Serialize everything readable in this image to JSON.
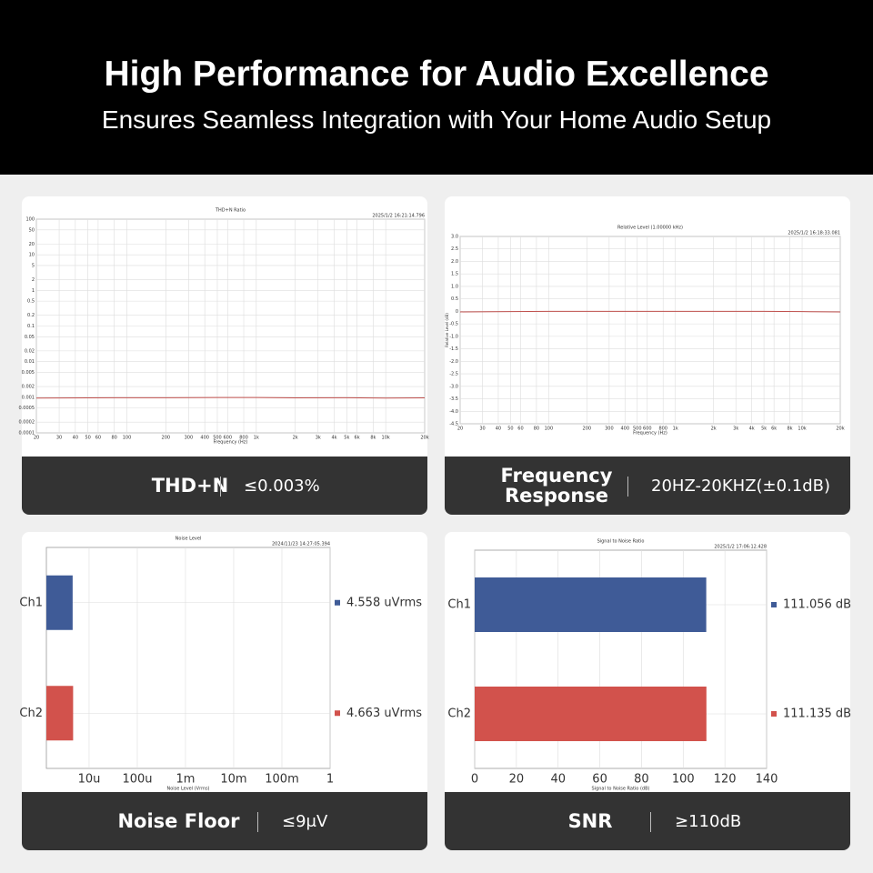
{
  "header": {
    "title": "High Performance for Audio Excellence",
    "subtitle": "Ensures Seamless Integration with Your Home Audio Setup"
  },
  "chart_data": [
    {
      "type": "line",
      "title": "THD+N Ratio",
      "timestamp": "2025/1/2 16:21:14.796",
      "x_label": "Frequency (Hz)",
      "x_log": true,
      "y_log": true,
      "xlim": [
        20,
        20000
      ],
      "ylim": [
        0.0001,
        100
      ],
      "grid": true,
      "xticks": [
        20,
        30,
        40,
        50,
        60,
        80,
        100,
        200,
        300,
        400,
        500,
        600,
        800,
        {
          "value": 1000,
          "label": "1k"
        },
        {
          "value": 2000,
          "label": "2k"
        },
        {
          "value": 3000,
          "label": "3k"
        },
        {
          "value": 4000,
          "label": "4k"
        },
        {
          "value": 5000,
          "label": "5k"
        },
        {
          "value": 6000,
          "label": "6k"
        },
        {
          "value": 8000,
          "label": "8k"
        },
        {
          "value": 10000,
          "label": "10k"
        },
        {
          "value": 20000,
          "label": "20k"
        }
      ],
      "yticks": [
        100,
        50,
        20,
        10,
        5,
        2,
        1,
        0.5,
        0.2,
        0.1,
        0.05,
        0.02,
        0.01,
        0.005,
        0.002,
        0.001,
        0.0005,
        0.0002,
        0.0001
      ],
      "x": [
        20,
        50,
        100,
        200,
        500,
        1000,
        2000,
        5000,
        10000,
        20000
      ],
      "series": [
        {
          "color": "#c0504d",
          "values": [
            0.00095,
            0.00096,
            0.00097,
            0.00097,
            0.00098,
            0.00098,
            0.00096,
            0.00097,
            0.00095,
            0.00096
          ]
        }
      ],
      "caption": {
        "label": "THD+N",
        "value": "≤0.003%"
      }
    },
    {
      "type": "line",
      "title": "Relative Level (1.00000 kHz)",
      "timestamp": "2025/1/2 16:18:33.081",
      "x_label": "Frequency (Hz)",
      "y_label": "Relative Level (dB)",
      "x_log": true,
      "xlim": [
        20,
        20000
      ],
      "ylim": [
        -4.5,
        3.0
      ],
      "grid": true,
      "xticks": [
        20,
        30,
        40,
        50,
        60,
        80,
        100,
        200,
        300,
        400,
        500,
        600,
        800,
        {
          "value": 1000,
          "label": "1k"
        },
        {
          "value": 2000,
          "label": "2k"
        },
        {
          "value": 3000,
          "label": "3k"
        },
        {
          "value": 4000,
          "label": "4k"
        },
        {
          "value": 5000,
          "label": "5k"
        },
        {
          "value": 6000,
          "label": "6k"
        },
        {
          "value": 8000,
          "label": "8k"
        },
        {
          "value": 10000,
          "label": "10k"
        },
        {
          "value": 20000,
          "label": "20k"
        }
      ],
      "yticks": [
        {
          "value": 3,
          "label": "3.0"
        },
        2.5,
        {
          "value": 2,
          "label": "2.0"
        },
        1.5,
        {
          "value": 1,
          "label": "1.0"
        },
        0.5,
        0,
        -0.5,
        {
          "value": -1,
          "label": "-1.0"
        },
        -1.5,
        {
          "value": -2,
          "label": "-2.0"
        },
        -2.5,
        {
          "value": -3,
          "label": "-3.0"
        },
        -3.5,
        {
          "value": -4,
          "label": "-4.0"
        },
        -4.5
      ],
      "x": [
        20,
        50,
        100,
        200,
        500,
        1000,
        2000,
        5000,
        10000,
        20000
      ],
      "series": [
        {
          "color": "#c0504d",
          "values": [
            -0.02,
            -0.01,
            0,
            0,
            0,
            0,
            0,
            0,
            -0.01,
            -0.02
          ]
        }
      ],
      "caption": {
        "label": "Frequency Response",
        "value": "20HZ-20KHZ(±0.1dB)"
      }
    },
    {
      "type": "hbar",
      "title": "Noise Level",
      "timestamp": "2024/11/23 14:27:05.394",
      "x_label": "Noise Level (Vrms)",
      "x_log": true,
      "xlim": [
        1.3e-06,
        1
      ],
      "grid": true,
      "xticks": [
        {
          "value": 1e-05,
          "label": "10u"
        },
        {
          "value": 0.0001,
          "label": "100u"
        },
        {
          "value": 0.001,
          "label": "1m"
        },
        {
          "value": 0.01,
          "label": "10m"
        },
        {
          "value": 0.1,
          "label": "100m"
        },
        1
      ],
      "categories": [
        "Ch1",
        "Ch2"
      ],
      "values": [
        4.558e-06,
        4.663e-06
      ],
      "value_labels": [
        "4.558  uVrms",
        "4.663  uVrms"
      ],
      "colors": [
        "#3f5b97",
        "#d2524c"
      ],
      "caption": {
        "label": "Noise Floor",
        "value": "≤9μV"
      }
    },
    {
      "type": "hbar",
      "title": "Signal to Noise Ratio",
      "timestamp": "2025/1/2 17:06:12.428",
      "x_label": "Signal to Noise Ratio (dB)",
      "xlim": [
        0,
        140
      ],
      "grid": true,
      "xticks": [
        0,
        20,
        40,
        60,
        80,
        100,
        120,
        140
      ],
      "categories": [
        "Ch1",
        "Ch2"
      ],
      "values": [
        111.056,
        111.135
      ],
      "value_labels": [
        "111.056 dB",
        "111.135 dB"
      ],
      "colors": [
        "#3f5b97",
        "#d2524c"
      ],
      "caption": {
        "label": "SNR",
        "value": "≥110dB"
      }
    }
  ]
}
